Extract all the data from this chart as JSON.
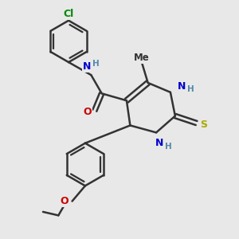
{
  "bg_color": "#e8e8e8",
  "bond_color": "#333333",
  "bond_width": 1.8,
  "atom_colors": {
    "C": "#333333",
    "N": "#0000cc",
    "O": "#cc0000",
    "S": "#aaaa00",
    "Cl": "#008800",
    "H": "#5588aa"
  },
  "font_size": 9,
  "font_size_small": 7.5
}
